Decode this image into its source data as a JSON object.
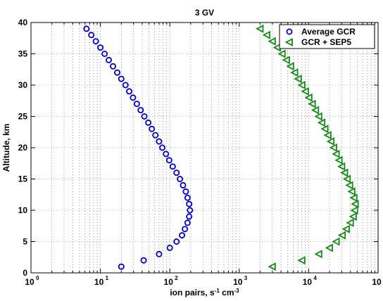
{
  "chart_data": {
    "type": "scatter",
    "title": "3 GV",
    "xlabel": "ion pairs, s-1 cm-3",
    "ylabel": "Altitude, km",
    "xscale": "log",
    "xlim": [
      1,
      100000
    ],
    "ylim": [
      0,
      40
    ],
    "x_tick_exponents": [
      0,
      1,
      2,
      3,
      4,
      5
    ],
    "y_ticks": [
      0,
      5,
      10,
      15,
      20,
      25,
      30,
      35,
      40
    ],
    "grid": true,
    "legend_position": "top-right",
    "series": [
      {
        "name": "Average GCR",
        "marker": "circle",
        "color": "#0000cc",
        "points": [
          [
            20,
            1
          ],
          [
            42,
            2
          ],
          [
            70,
            3
          ],
          [
            100,
            4
          ],
          [
            125,
            5
          ],
          [
            150,
            6
          ],
          [
            165,
            7
          ],
          [
            180,
            8
          ],
          [
            190,
            9
          ],
          [
            195,
            10
          ],
          [
            190,
            11
          ],
          [
            180,
            12
          ],
          [
            170,
            13
          ],
          [
            155,
            14
          ],
          [
            140,
            15
          ],
          [
            125,
            16
          ],
          [
            110,
            17
          ],
          [
            98,
            18
          ],
          [
            88,
            19
          ],
          [
            78,
            20
          ],
          [
            70,
            21
          ],
          [
            62,
            22
          ],
          [
            55,
            23
          ],
          [
            49,
            24
          ],
          [
            43,
            25
          ],
          [
            38,
            26
          ],
          [
            33.5,
            27
          ],
          [
            29.5,
            28
          ],
          [
            26,
            29
          ],
          [
            23,
            30
          ],
          [
            20,
            31
          ],
          [
            17.5,
            32
          ],
          [
            15.2,
            33
          ],
          [
            13.2,
            34
          ],
          [
            11.5,
            35
          ],
          [
            10,
            36
          ],
          [
            8.6,
            37
          ],
          [
            7.4,
            38
          ],
          [
            6.3,
            39
          ]
        ]
      },
      {
        "name": "GCR + SEP5",
        "marker": "triangle-left",
        "color": "#138a13",
        "points": [
          [
            3000,
            1
          ],
          [
            8000,
            2
          ],
          [
            14000,
            3
          ],
          [
            20000,
            4
          ],
          [
            25000,
            5
          ],
          [
            30500,
            6
          ],
          [
            35000,
            7
          ],
          [
            40000,
            8
          ],
          [
            44000,
            9
          ],
          [
            46000,
            10
          ],
          [
            47000,
            11
          ],
          [
            45000,
            12
          ],
          [
            42000,
            13
          ],
          [
            39000,
            14
          ],
          [
            36000,
            15
          ],
          [
            33000,
            16
          ],
          [
            30000,
            17
          ],
          [
            27500,
            18
          ],
          [
            25000,
            19
          ],
          [
            23000,
            20
          ],
          [
            21000,
            21
          ],
          [
            19000,
            22
          ],
          [
            17200,
            23
          ],
          [
            15500,
            24
          ],
          [
            14000,
            25
          ],
          [
            12600,
            26
          ],
          [
            11300,
            27
          ],
          [
            10100,
            28
          ],
          [
            9000,
            29
          ],
          [
            8000,
            30
          ],
          [
            7100,
            31
          ],
          [
            6300,
            32
          ],
          [
            5500,
            33
          ],
          [
            4800,
            34
          ],
          [
            4150,
            35
          ],
          [
            3550,
            36
          ],
          [
            3000,
            37
          ],
          [
            2500,
            38
          ],
          [
            2000,
            39
          ]
        ]
      }
    ]
  }
}
